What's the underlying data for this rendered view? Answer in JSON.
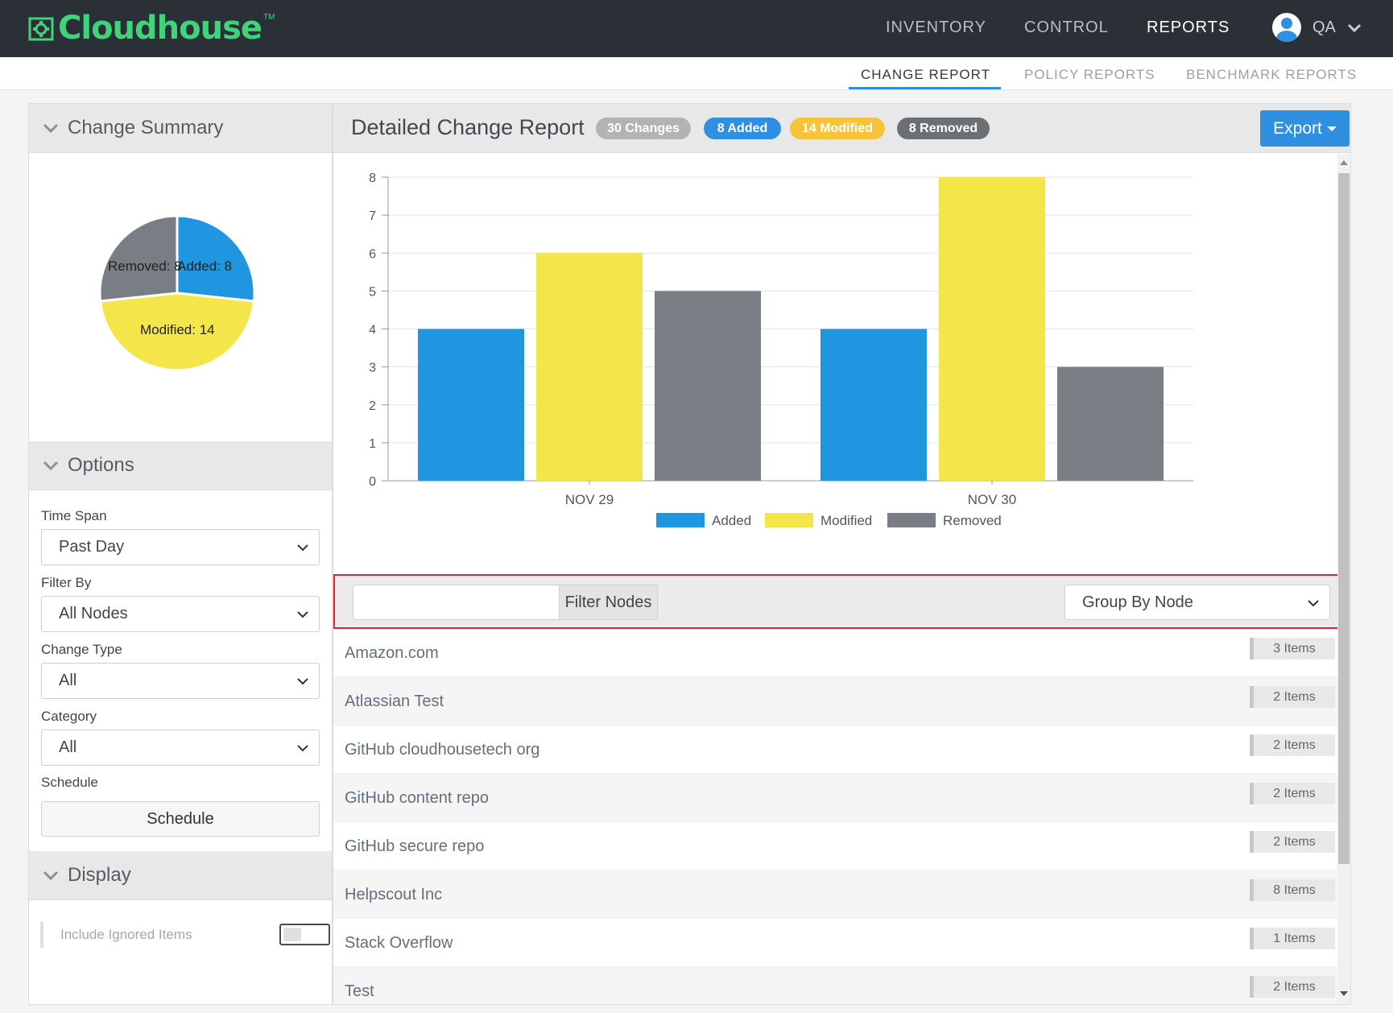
{
  "app": {
    "brand": "Cloudhouse",
    "trademark": "TM"
  },
  "nav": {
    "items": [
      {
        "label": "INVENTORY",
        "active": false
      },
      {
        "label": "CONTROL",
        "active": false
      },
      {
        "label": "REPORTS",
        "active": true
      }
    ],
    "user": "QA"
  },
  "subnav": {
    "items": [
      {
        "label": "CHANGE REPORT",
        "active": true
      },
      {
        "label": "POLICY REPORTS",
        "active": false
      },
      {
        "label": "BENCHMARK REPORTS",
        "active": false
      }
    ]
  },
  "sidebar": {
    "summary_title": "Change Summary",
    "pie": {
      "slices": [
        {
          "label": "Added: 8",
          "value": 8,
          "color": "#2196e0"
        },
        {
          "label": "Modified: 14",
          "value": 14,
          "color": "#f4e54a"
        },
        {
          "label": "Removed: 8",
          "value": 8,
          "color": "#787e84"
        }
      ]
    },
    "options_title": "Options",
    "time_span": {
      "label": "Time Span",
      "value": "Past Day"
    },
    "filter_by": {
      "label": "Filter By",
      "value": "All Nodes"
    },
    "change_type": {
      "label": "Change Type",
      "value": "All"
    },
    "category": {
      "label": "Category",
      "value": "All"
    },
    "schedule": {
      "label": "Schedule",
      "button": "Schedule"
    },
    "display_title": "Display",
    "include_ignored": {
      "label": "Include Ignored Items",
      "checked": false
    }
  },
  "main": {
    "title": "Detailed Change Report",
    "badges": [
      {
        "label": "30 Changes",
        "color": "#b3b3b3"
      },
      {
        "label": "8 Added",
        "color": "#2f8fe0"
      },
      {
        "label": "14 Modified",
        "color": "#f7c439"
      },
      {
        "label": "8 Removed",
        "color": "#6b7075"
      }
    ],
    "export_label": "Export",
    "filter": {
      "placeholder": "",
      "button": "Filter Nodes"
    },
    "group_by": "Group By Node",
    "nodes": [
      {
        "name": "Amazon.com",
        "count": "3 Items"
      },
      {
        "name": "Atlassian Test",
        "count": "2 Items"
      },
      {
        "name": "GitHub cloudhousetech org",
        "count": "2 Items"
      },
      {
        "name": "GitHub content repo",
        "count": "2 Items"
      },
      {
        "name": "GitHub secure repo",
        "count": "2 Items"
      },
      {
        "name": "Helpscout Inc",
        "count": "8 Items"
      },
      {
        "name": "Stack Overflow",
        "count": "1 Items"
      },
      {
        "name": "Test",
        "count": "2 Items"
      }
    ]
  },
  "chart_data": {
    "type": "bar",
    "categories": [
      "NOV 29",
      "NOV 30"
    ],
    "series": [
      {
        "name": "Added",
        "values": [
          4,
          4
        ],
        "color": "#2196e0"
      },
      {
        "name": "Modified",
        "values": [
          6,
          8
        ],
        "color": "#f4e54a"
      },
      {
        "name": "Removed",
        "values": [
          5,
          3
        ],
        "color": "#787e84"
      }
    ],
    "ylim": [
      0,
      8
    ],
    "yticks": [
      0,
      1,
      2,
      3,
      4,
      5,
      6,
      7,
      8
    ],
    "grid": true,
    "legend": "bottom"
  }
}
